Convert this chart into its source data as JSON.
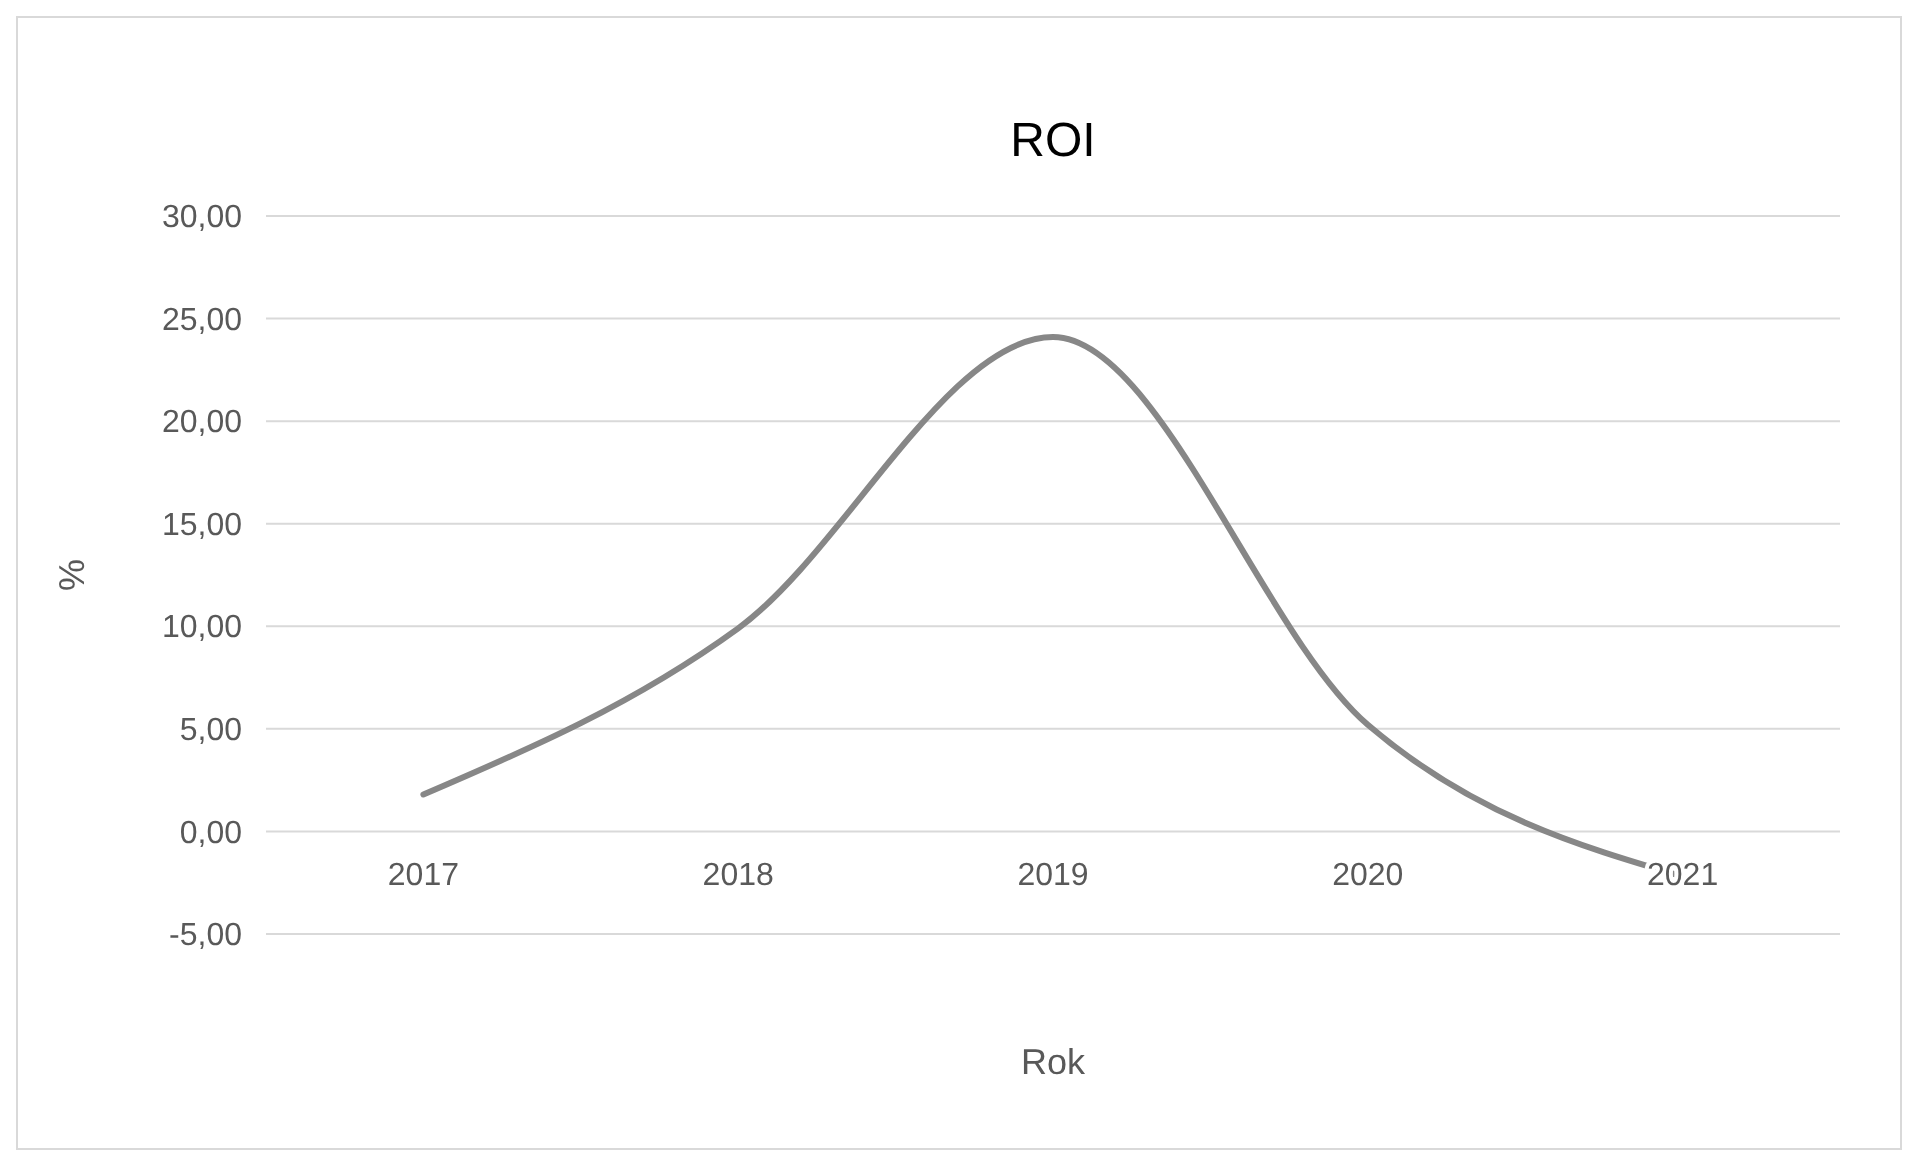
{
  "chart_data": {
    "type": "line",
    "title": "ROI",
    "xlabel": "Rok",
    "ylabel": "%",
    "categories": [
      "2017",
      "2018",
      "2019",
      "2020",
      "2021"
    ],
    "series": [
      {
        "color": "#878787",
        "values": [
          1.8,
          9.9,
          24.1,
          5.2,
          -2.2
        ]
      }
    ],
    "ylim": [
      -5,
      30
    ],
    "yticks": [
      {
        "value": -5,
        "label": "-5,00"
      },
      {
        "value": 0,
        "label": "0,00"
      },
      {
        "value": 5,
        "label": "5,00"
      },
      {
        "value": 10,
        "label": "10,00"
      },
      {
        "value": 15,
        "label": "15,00"
      },
      {
        "value": 20,
        "label": "20,00"
      },
      {
        "value": 25,
        "label": "25,00"
      },
      {
        "value": 30,
        "label": "30,00"
      }
    ],
    "grid": "y",
    "marker": "none",
    "line_style": "solid"
  }
}
